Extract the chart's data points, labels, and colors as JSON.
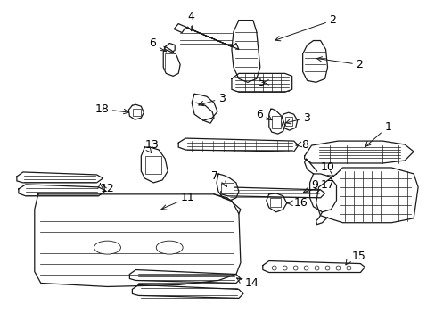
{
  "bg_color": "#ffffff",
  "fig_width": 4.89,
  "fig_height": 3.6,
  "dpi": 100,
  "line_color": "#1a1a1a",
  "font_size": 9,
  "font_color": "#000000",
  "lw": 0.9
}
